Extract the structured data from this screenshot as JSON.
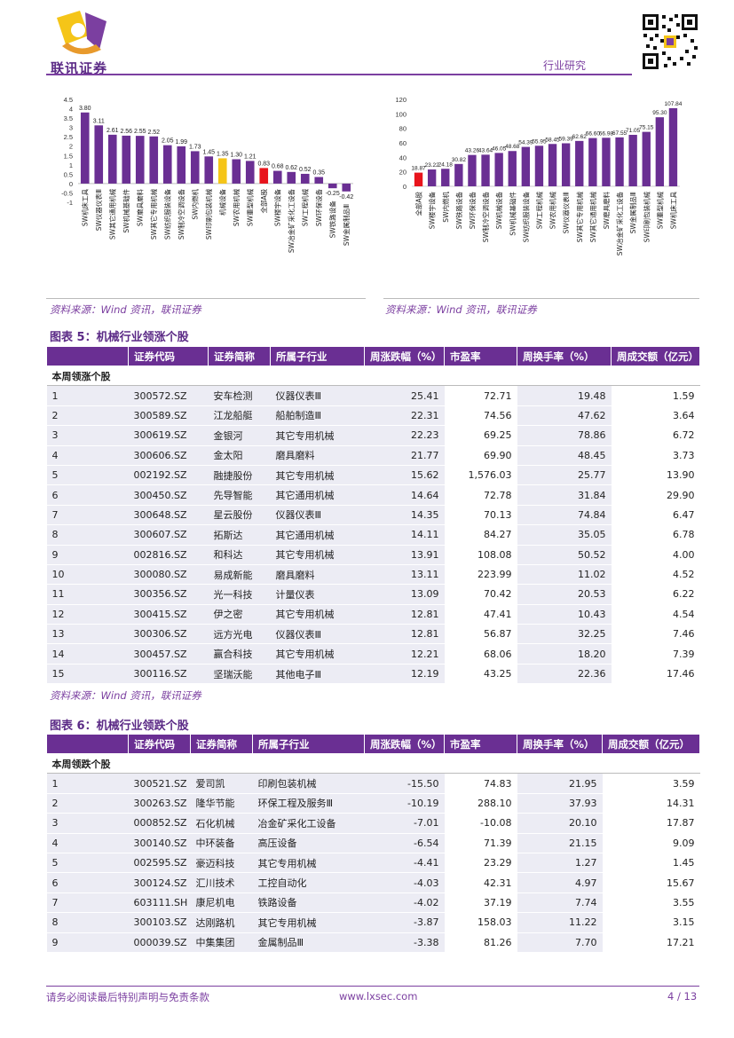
{
  "header": {
    "logo_text": "联讯证券",
    "report_type": "行业研究"
  },
  "chart_data": [
    {
      "type": "bar",
      "categories": [
        "SW机床工具",
        "SW仪器仪表Ⅲ",
        "SW其它通用机械",
        "SW机械基础件",
        "SW磨具磨料",
        "SW其它专用机械",
        "SW纺织服装设备",
        "SW制冷空调设备",
        "SW内燃机",
        "SW印刷包装机械",
        "机械设备",
        "SW农用机械",
        "SW重型机械",
        "全部A股",
        "SW楼宇设备",
        "SW冶金矿采化工设备",
        "SW工程机械",
        "SW环保设备",
        "SW铁路设备",
        "SW金属制品Ⅲ"
      ],
      "values": [
        3.8,
        3.11,
        2.61,
        2.56,
        2.55,
        2.52,
        2.05,
        1.99,
        1.73,
        1.45,
        1.35,
        1.3,
        1.21,
        0.83,
        0.68,
        0.62,
        0.52,
        0.35,
        -0.25,
        -0.42
      ],
      "value_labels": [
        "3.80",
        "3.11",
        "2.61",
        "2.56",
        "2.55",
        "2.52",
        "2.05",
        "1.99",
        "1.73",
        "1.45",
        "1.35",
        "1.30",
        "1.21",
        "0.83",
        "0.68",
        "0.62",
        "0.52",
        "0.35",
        "-0.25",
        "-0.42"
      ],
      "highlight": {
        "机械设备": "#f5c518",
        "全部A股": "#e8141c"
      },
      "yticks": [
        "4.5",
        "4",
        "3.5",
        "3",
        "2.5",
        "2",
        "1.5",
        "1",
        "0.5",
        "0",
        "-0.5",
        "-1"
      ],
      "ylim": [
        -1,
        4.5
      ]
    },
    {
      "type": "bar",
      "categories": [
        "全部A股",
        "SW楼宇设备",
        "SW内燃机",
        "SW铁路设备",
        "SW环保设备",
        "SW制冷空调设备",
        "SW机械设备",
        "SW机械基础件",
        "SW纺织服装设备",
        "SW工程机械",
        "SW农用机械",
        "SW仪器仪表Ⅲ",
        "SW其它专用机械",
        "SW其它通用机械",
        "SW磨具磨料",
        "SW冶金矿采化工设备",
        "SW金属制品Ⅲ",
        "SW印刷包装机械",
        "SW重型机械",
        "SW机床工具"
      ],
      "values": [
        18.87,
        23.22,
        24.18,
        30.82,
        43.26,
        43.64,
        46.05,
        48.68,
        54.39,
        55.95,
        58.45,
        59.39,
        62.62,
        66.6,
        66.98,
        67.55,
        71.05,
        75.15,
        95.3,
        107.84
      ],
      "value_labels": [
        "18.87",
        "23.22",
        "24.18",
        "30.82",
        "43.26",
        "43.64",
        "46.05",
        "48.68",
        "54.39",
        "55.95",
        "58.45",
        "59.39",
        "62.62",
        "66.60",
        "66.98",
        "67.55",
        "71.05",
        "75.15",
        "95.30",
        "107.84"
      ],
      "highlight": {
        "全部A股": "#e8141c"
      },
      "yticks": [
        "120",
        "100",
        "80",
        "60",
        "40",
        "20",
        "0"
      ],
      "ylim": [
        0,
        120
      ]
    }
  ],
  "sources": {
    "chart1": "资料来源：Wind 资讯，联讯证券",
    "chart2": "资料来源：Wind 资讯，联讯证券",
    "table5": "资料来源：Wind 资讯，联讯证券"
  },
  "table5": {
    "title": "图表 5：机械行业领涨个股",
    "headers": [
      "",
      "证券代码",
      "证券简称",
      "所属子行业",
      "周涨跌幅（%）",
      "市盈率",
      "周换手率（%）",
      "周成交额（亿元）"
    ],
    "section": "本周领涨个股",
    "rows": [
      [
        "1",
        "300572.SZ",
        "安车检测",
        "仪器仪表Ⅲ",
        "25.41",
        "72.71",
        "19.48",
        "1.59"
      ],
      [
        "2",
        "300589.SZ",
        "江龙船艇",
        "船舶制造Ⅲ",
        "22.31",
        "74.56",
        "47.62",
        "3.64"
      ],
      [
        "3",
        "300619.SZ",
        "金银河",
        "其它专用机械",
        "22.23",
        "69.25",
        "78.86",
        "6.72"
      ],
      [
        "4",
        "300606.SZ",
        "金太阳",
        "磨具磨料",
        "21.77",
        "69.90",
        "48.45",
        "3.73"
      ],
      [
        "5",
        "002192.SZ",
        "融捷股份",
        "其它专用机械",
        "15.62",
        "1,576.03",
        "25.77",
        "13.90"
      ],
      [
        "6",
        "300450.SZ",
        "先导智能",
        "其它通用机械",
        "14.64",
        "72.78",
        "31.84",
        "29.90"
      ],
      [
        "7",
        "300648.SZ",
        "星云股份",
        "仪器仪表Ⅲ",
        "14.35",
        "70.13",
        "74.84",
        "6.47"
      ],
      [
        "8",
        "300607.SZ",
        "拓斯达",
        "其它通用机械",
        "14.11",
        "84.27",
        "35.05",
        "6.78"
      ],
      [
        "9",
        "002816.SZ",
        "和科达",
        "其它专用机械",
        "13.91",
        "108.08",
        "50.52",
        "4.00"
      ],
      [
        "10",
        "300080.SZ",
        "易成新能",
        "磨具磨料",
        "13.11",
        "223.99",
        "11.02",
        "4.52"
      ],
      [
        "11",
        "300356.SZ",
        "光一科技",
        "计量仪表",
        "13.09",
        "70.42",
        "20.53",
        "6.22"
      ],
      [
        "12",
        "300415.SZ",
        "伊之密",
        "其它专用机械",
        "12.81",
        "47.41",
        "10.43",
        "4.54"
      ],
      [
        "13",
        "300306.SZ",
        "远方光电",
        "仪器仪表Ⅲ",
        "12.81",
        "56.87",
        "32.25",
        "7.46"
      ],
      [
        "14",
        "300457.SZ",
        "赢合科技",
        "其它专用机械",
        "12.21",
        "68.06",
        "18.20",
        "7.39"
      ],
      [
        "15",
        "300116.SZ",
        "坚瑞沃能",
        "其他电子Ⅲ",
        "12.19",
        "43.25",
        "22.36",
        "17.46"
      ]
    ]
  },
  "table6": {
    "title": "图表 6：机械行业领跌个股",
    "headers": [
      "",
      "证券代码",
      "证券简称",
      "所属子行业",
      "周涨跌幅（%）",
      "市盈率",
      "周换手率（%）",
      "周成交额（亿元）"
    ],
    "section": "本周领跌个股",
    "rows": [
      [
        "1",
        "300521.SZ",
        "爱司凯",
        "印刷包装机械",
        "-15.50",
        "74.83",
        "21.95",
        "3.59"
      ],
      [
        "2",
        "300263.SZ",
        "隆华节能",
        "环保工程及服务Ⅲ",
        "-10.19",
        "288.10",
        "37.93",
        "14.31"
      ],
      [
        "3",
        "000852.SZ",
        "石化机械",
        "冶金矿采化工设备",
        "-7.01",
        "-10.08",
        "20.10",
        "17.87"
      ],
      [
        "4",
        "300140.SZ",
        "中环装备",
        "高压设备",
        "-6.54",
        "71.39",
        "21.15",
        "9.09"
      ],
      [
        "5",
        "002595.SZ",
        "豪迈科技",
        "其它专用机械",
        "-4.41",
        "23.29",
        "1.27",
        "1.45"
      ],
      [
        "6",
        "300124.SZ",
        "汇川技术",
        "工控自动化",
        "-4.03",
        "42.31",
        "4.97",
        "15.67"
      ],
      [
        "7",
        "603111.SH",
        "康尼机电",
        "铁路设备",
        "-4.02",
        "37.19",
        "7.74",
        "3.55"
      ],
      [
        "8",
        "300103.SZ",
        "达刚路机",
        "其它专用机械",
        "-3.87",
        "158.03",
        "11.22",
        "3.15"
      ],
      [
        "9",
        "000039.SZ",
        "中集集团",
        "金属制品Ⅲ",
        "-3.38",
        "81.26",
        "7.70",
        "17.21"
      ]
    ]
  },
  "footer": {
    "disclaimer": "请务必阅读最后特别声明与免责条款",
    "website": "www.lxsec.com",
    "page": "4 / 13"
  },
  "colors": {
    "bar": "#6a2f93",
    "header_bg": "#6a2f93",
    "row_bg": "#ececf4",
    "accent": "#7b3fa0"
  }
}
